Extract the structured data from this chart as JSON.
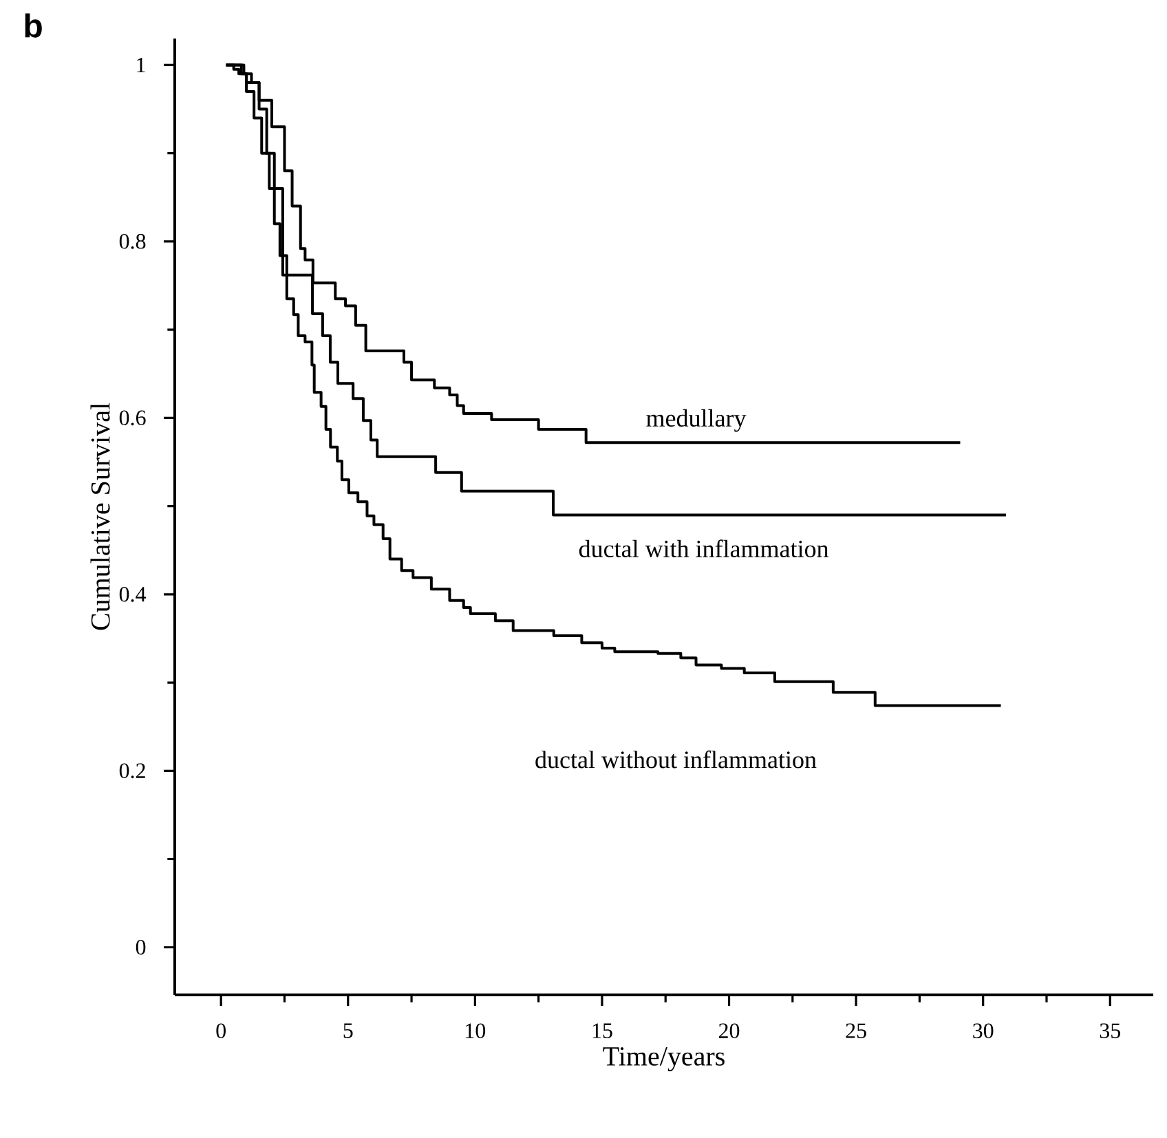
{
  "chart_data": {
    "type": "step",
    "title": "b",
    "xlabel": "Time/years",
    "ylabel": "Cumulative Survival",
    "xlim": [
      -1.82,
      36.7
    ],
    "ylim": [
      -0.054,
      1.03
    ],
    "xticks": [
      0,
      5,
      10,
      15,
      20,
      25,
      30,
      35
    ],
    "yticks": [
      0,
      0.2,
      0.4,
      0.6,
      0.8,
      1
    ],
    "grid": false,
    "marker": "none",
    "line_style": "solid",
    "series": [
      {
        "name": "medullary",
        "color": "#000000",
        "x": [
          0.2,
          0.8,
          1.0,
          1.5,
          2.0,
          2.5,
          2.8,
          3.13,
          3.31,
          3.62,
          4.5,
          4.9,
          5.3,
          5.7,
          6.0,
          7.2,
          7.5,
          8.4,
          9.0,
          9.3,
          9.55,
          10.65,
          12.5,
          14.37,
          29.1
        ],
        "values": [
          1,
          0.99,
          0.98,
          0.96,
          0.93,
          0.88,
          0.84,
          0.792,
          0.779,
          0.753,
          0.735,
          0.727,
          0.705,
          0.676,
          0.676,
          0.663,
          0.643,
          0.634,
          0.626,
          0.614,
          0.605,
          0.598,
          0.587,
          0.572,
          0.572
        ]
      },
      {
        "name": "ductal with inflammation",
        "color": "#000000",
        "x": [
          0.2,
          0.9,
          1.2,
          1.5,
          1.8,
          2.1,
          2.43,
          3.6,
          4.0,
          4.3,
          4.6,
          5.2,
          5.6,
          5.9,
          6.15,
          8.45,
          9.47,
          13.08,
          30.9
        ],
        "values": [
          1,
          0.99,
          0.98,
          0.95,
          0.9,
          0.86,
          0.762,
          0.718,
          0.693,
          0.663,
          0.639,
          0.622,
          0.597,
          0.575,
          0.556,
          0.538,
          0.517,
          0.49,
          0.49
        ]
      },
      {
        "name": "ductal without inflammation",
        "color": "#000000",
        "x": [
          0.2,
          0.5,
          0.7,
          1.0,
          1.3,
          1.6,
          1.9,
          2.1,
          2.32,
          2.59,
          2.86,
          3.04,
          3.31,
          3.58,
          3.67,
          3.94,
          4.13,
          4.31,
          4.58,
          4.76,
          5.03,
          5.39,
          5.75,
          6.02,
          6.38,
          6.65,
          7.11,
          7.56,
          8.28,
          9.0,
          9.55,
          9.82,
          10.8,
          11.5,
          13.1,
          14.2,
          15.0,
          15.5,
          17.2,
          18.1,
          18.7,
          19.7,
          20.6,
          21.8,
          24.1,
          25.75,
          30.7
        ],
        "values": [
          1,
          0.995,
          0.99,
          0.97,
          0.94,
          0.9,
          0.86,
          0.82,
          0.784,
          0.735,
          0.717,
          0.693,
          0.686,
          0.66,
          0.629,
          0.613,
          0.587,
          0.567,
          0.551,
          0.53,
          0.515,
          0.505,
          0.489,
          0.479,
          0.463,
          0.44,
          0.427,
          0.419,
          0.406,
          0.393,
          0.385,
          0.378,
          0.37,
          0.359,
          0.353,
          0.345,
          0.339,
          0.335,
          0.333,
          0.328,
          0.32,
          0.316,
          0.311,
          0.301,
          0.289,
          0.274,
          0.274
        ]
      }
    ]
  }
}
